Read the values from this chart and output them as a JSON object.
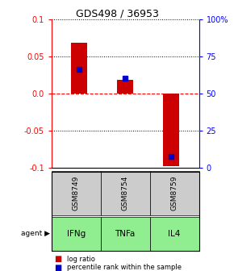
{
  "title": "GDS498 / 36953",
  "samples": [
    "GSM8749",
    "GSM8754",
    "GSM8759"
  ],
  "agents": [
    "IFNg",
    "TNFa",
    "IL4"
  ],
  "log_ratios": [
    0.068,
    0.018,
    -0.098
  ],
  "percentile_ranks": [
    0.66,
    0.6,
    0.08
  ],
  "ylim_left": [
    -0.1,
    0.1
  ],
  "yticks_left": [
    -0.1,
    -0.05,
    0.0,
    0.05,
    0.1
  ],
  "yticks_right": [
    0.0,
    0.25,
    0.5,
    0.75,
    1.0
  ],
  "yticklabels_right": [
    "0",
    "25",
    "50",
    "75",
    "100%"
  ],
  "bar_color": "#cc0000",
  "blue_color": "#0000cc",
  "sample_bg": "#cccccc",
  "agent_bg": "#90ee90",
  "legend_red": "log ratio",
  "legend_blue": "percentile rank within the sample",
  "bar_width": 0.35
}
